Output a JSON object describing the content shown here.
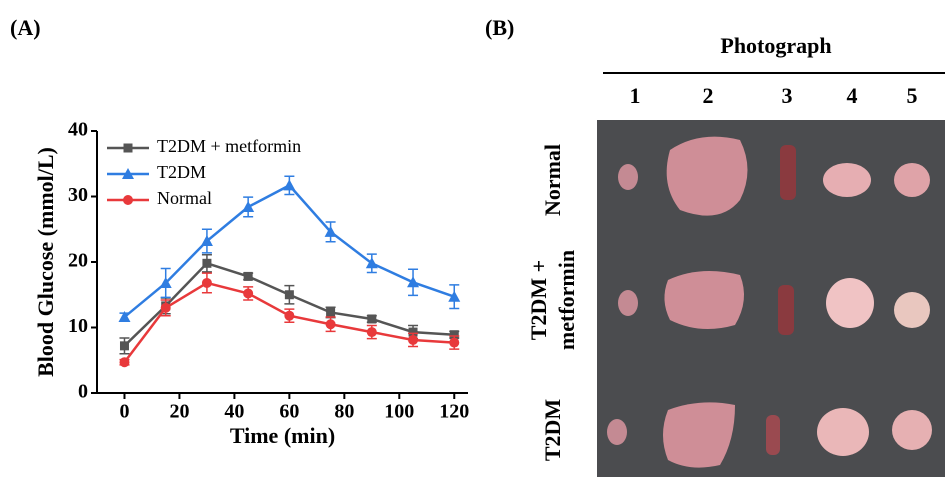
{
  "chart_data": {
    "type": "line",
    "x_label": "Time (min)",
    "y_label": "Blood Glucose (mmol/L)",
    "x": [
      0,
      15,
      30,
      45,
      60,
      75,
      90,
      105,
      120
    ],
    "xlim": [
      -10,
      125
    ],
    "xticks": [
      0,
      20,
      40,
      60,
      80,
      100,
      120
    ],
    "ylim": [
      0,
      40
    ],
    "yticks": [
      0,
      10,
      20,
      30,
      40
    ],
    "grid": false,
    "legend": "upper left",
    "series": [
      {
        "name": "T2DM + metformin",
        "color": "#555555",
        "marker": "square",
        "values": [
          7.2,
          13.3,
          19.8,
          17.8,
          15.0,
          12.3,
          11.3,
          9.3,
          8.9
        ],
        "errors": [
          1.2,
          1.2,
          1.3,
          0.5,
          1.4,
          0.8,
          0.5,
          1.0,
          0.5
        ]
      },
      {
        "name": "T2DM",
        "color": "#2f7de1",
        "marker": "triangle",
        "values": [
          11.6,
          16.8,
          23.2,
          28.4,
          31.7,
          24.6,
          19.8,
          16.9,
          14.7
        ],
        "errors": [
          0.6,
          2.2,
          1.8,
          1.5,
          1.4,
          1.5,
          1.4,
          2.0,
          1.8
        ]
      },
      {
        "name": "Normal",
        "color": "#e8393b",
        "marker": "circle",
        "values": [
          4.7,
          13.0,
          16.8,
          15.2,
          11.8,
          10.5,
          9.3,
          8.1,
          7.7
        ],
        "errors": [
          0.4,
          1.2,
          1.5,
          1.0,
          1.0,
          1.1,
          1.0,
          1.0,
          1.0
        ]
      }
    ]
  },
  "panels": [
    "(A)",
    "(B)"
  ],
  "photograph": {
    "title": "Photograph",
    "columns": [
      "1",
      "2",
      "3",
      "4",
      "5"
    ],
    "rows": [
      [
        "Normal"
      ],
      [
        "T2DM +",
        "metformin"
      ],
      [
        "T2DM"
      ]
    ]
  }
}
